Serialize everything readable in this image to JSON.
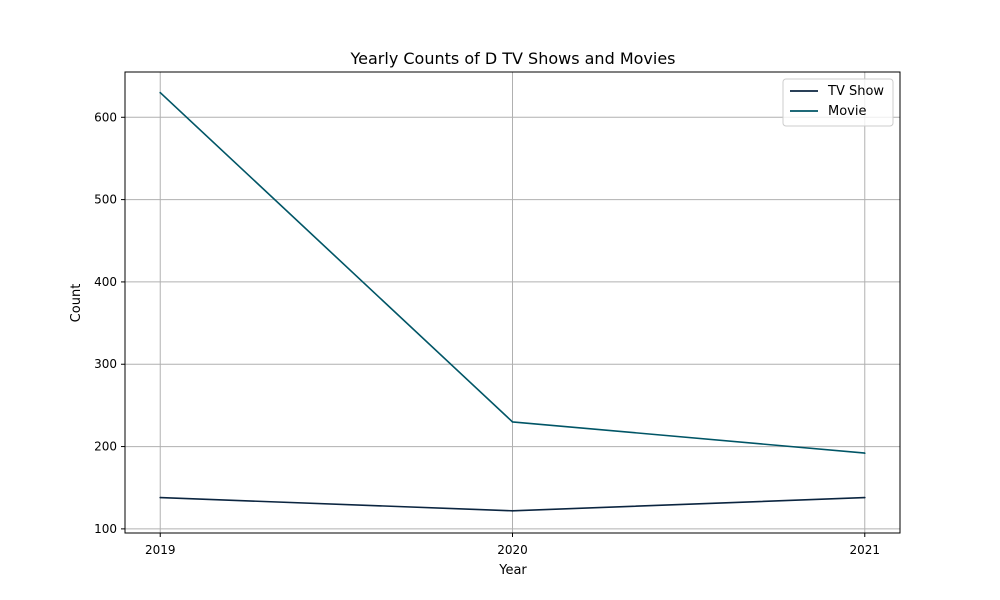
{
  "chart_data": {
    "type": "line",
    "title": "Yearly Counts of D TV Shows and Movies",
    "xlabel": "Year",
    "ylabel": "Count",
    "x": [
      2019,
      2020,
      2021
    ],
    "xticks": [
      "2019",
      "2020",
      "2021"
    ],
    "yticks": [
      100,
      200,
      300,
      400,
      500,
      600
    ],
    "xlim": [
      2018.9,
      2021.1
    ],
    "ylim": [
      95,
      655
    ],
    "grid": true,
    "legend_position": "top-right",
    "series": [
      {
        "name": "TV Show",
        "values": [
          138,
          122,
          138
        ],
        "color": "#0b2540"
      },
      {
        "name": "Movie",
        "values": [
          630,
          230,
          192
        ],
        "color": "#005566"
      }
    ]
  }
}
